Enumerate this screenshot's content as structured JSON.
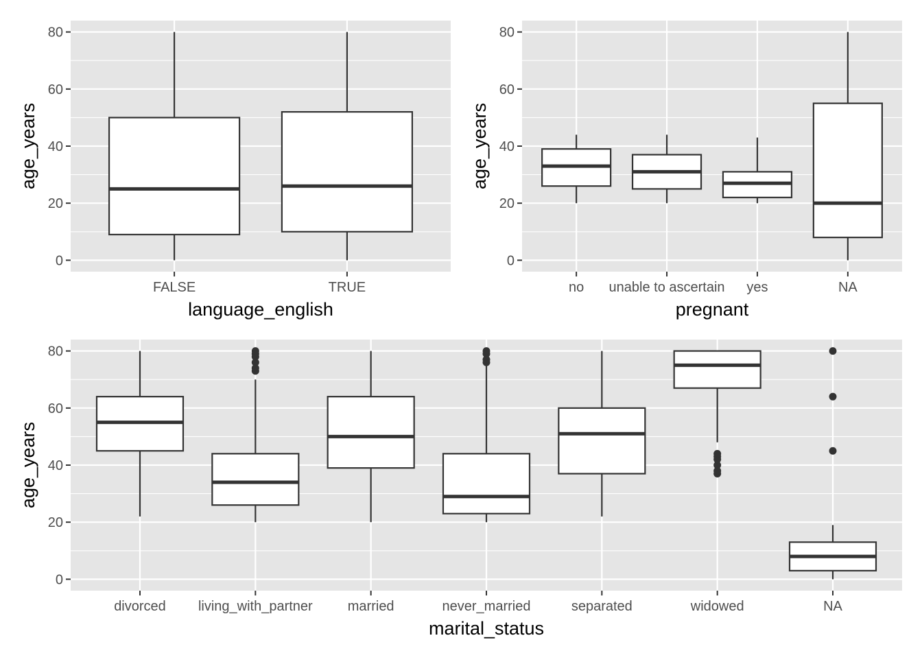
{
  "chart_data": [
    {
      "type": "boxplot",
      "xlabel": "language_english",
      "ylabel": "age_years",
      "ylim": [
        -4,
        84
      ],
      "yticks": [
        0,
        20,
        40,
        60,
        80
      ],
      "grid": true,
      "categories": [
        "FALSE",
        "TRUE"
      ],
      "boxes": [
        {
          "category": "FALSE",
          "whisker_low": 0,
          "q1": 9,
          "median": 25,
          "q3": 50,
          "whisker_high": 80,
          "outliers": []
        },
        {
          "category": "TRUE",
          "whisker_low": 0,
          "q1": 10,
          "median": 26,
          "q3": 52,
          "whisker_high": 80,
          "outliers": []
        }
      ]
    },
    {
      "type": "boxplot",
      "xlabel": "pregnant",
      "ylabel": "age_years",
      "ylim": [
        -4,
        84
      ],
      "yticks": [
        0,
        20,
        40,
        60,
        80
      ],
      "grid": true,
      "categories": [
        "no",
        "unable to ascertain",
        "yes",
        "NA"
      ],
      "boxes": [
        {
          "category": "no",
          "whisker_low": 20,
          "q1": 26,
          "median": 33,
          "q3": 39,
          "whisker_high": 44,
          "outliers": []
        },
        {
          "category": "unable to ascertain",
          "whisker_low": 20,
          "q1": 25,
          "median": 31,
          "q3": 37,
          "whisker_high": 44,
          "outliers": []
        },
        {
          "category": "yes",
          "whisker_low": 20,
          "q1": 22,
          "median": 27,
          "q3": 31,
          "whisker_high": 43,
          "outliers": []
        },
        {
          "category": "NA",
          "whisker_low": 0,
          "q1": 8,
          "median": 20,
          "q3": 55,
          "whisker_high": 80,
          "outliers": []
        }
      ]
    },
    {
      "type": "boxplot",
      "xlabel": "marital_status",
      "ylabel": "age_years",
      "ylim": [
        -4,
        84
      ],
      "yticks": [
        0,
        20,
        40,
        60,
        80
      ],
      "grid": true,
      "categories": [
        "divorced",
        "living_with_partner",
        "married",
        "never_married",
        "separated",
        "widowed",
        "NA"
      ],
      "boxes": [
        {
          "category": "divorced",
          "whisker_low": 22,
          "q1": 45,
          "median": 55,
          "q3": 64,
          "whisker_high": 80,
          "outliers": []
        },
        {
          "category": "living_with_partner",
          "whisker_low": 20,
          "q1": 26,
          "median": 34,
          "q3": 44,
          "whisker_high": 70,
          "outliers": [
            73,
            74,
            76,
            78,
            79,
            80
          ]
        },
        {
          "category": "married",
          "whisker_low": 20,
          "q1": 39,
          "median": 50,
          "q3": 64,
          "whisker_high": 80,
          "outliers": []
        },
        {
          "category": "never_married",
          "whisker_low": 20,
          "q1": 23,
          "median": 29,
          "q3": 44,
          "whisker_high": 75,
          "outliers": [
            76,
            77,
            79,
            80
          ]
        },
        {
          "category": "separated",
          "whisker_low": 22,
          "q1": 37,
          "median": 51,
          "q3": 60,
          "whisker_high": 80,
          "outliers": []
        },
        {
          "category": "widowed",
          "whisker_low": 48,
          "q1": 67,
          "median": 75,
          "q3": 80,
          "whisker_high": 80,
          "outliers": [
            37,
            38,
            40,
            42,
            43,
            44
          ]
        },
        {
          "category": "NA",
          "whisker_low": 0,
          "q1": 3,
          "median": 8,
          "q3": 13,
          "whisker_high": 19,
          "outliers": [
            45,
            64,
            80
          ]
        }
      ]
    }
  ],
  "colors": {
    "panel_background": "#e5e5e5",
    "grid_line": "#ffffff",
    "box_fill": "#ffffff",
    "box_stroke": "#333333",
    "outlier": "#333333",
    "tick_text": "#4d4d4d",
    "tick_mark": "#333333",
    "title_text": "#000000"
  }
}
